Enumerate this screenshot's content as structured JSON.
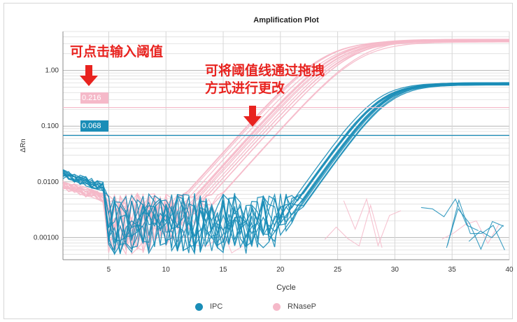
{
  "chart_data": {
    "type": "line",
    "title": "Amplification Plot",
    "xlabel": "Cycle",
    "ylabel": "ΔRn",
    "y_scale": "log",
    "xlim": [
      1,
      40
    ],
    "ylim": [
      0.0004,
      5.0
    ],
    "x_ticks": [
      5,
      10,
      15,
      20,
      25,
      30,
      35,
      40
    ],
    "y_ticks": [
      {
        "value": 0.001,
        "label": "0.00100"
      },
      {
        "value": 0.01,
        "label": "0.0100"
      },
      {
        "value": 0.1,
        "label": "0.100"
      },
      {
        "value": 1.0,
        "label": "1.00"
      }
    ],
    "grid": true,
    "legend_position": "bottom",
    "series": [
      {
        "name": "IPC",
        "color": "#1a8db7",
        "thresholdColor": "#1a8db7",
        "plateau": 0.6,
        "ct_midpoint": [
          28.6,
          29.0,
          29.4
        ],
        "count": 12
      },
      {
        "name": "RNaseP",
        "color": "#f5b9c9",
        "thresholdColor": "#f5b9c9",
        "plateau": 3.6,
        "ct_midpoint": [
          24.0,
          24.6,
          25.2,
          25.8,
          26.4,
          27.0
        ],
        "count": 16
      }
    ],
    "thresholds": [
      {
        "series": "RNaseP",
        "value": 0.216,
        "label": "0.216"
      },
      {
        "series": "IPC",
        "value": 0.068,
        "label": "0.068"
      }
    ]
  },
  "annotations": {
    "left": "可点击输入阈值",
    "right_line1": "可将阈值线通过拖拽",
    "right_line2": "方式进行更改"
  },
  "arrow_color": "#e8231f"
}
